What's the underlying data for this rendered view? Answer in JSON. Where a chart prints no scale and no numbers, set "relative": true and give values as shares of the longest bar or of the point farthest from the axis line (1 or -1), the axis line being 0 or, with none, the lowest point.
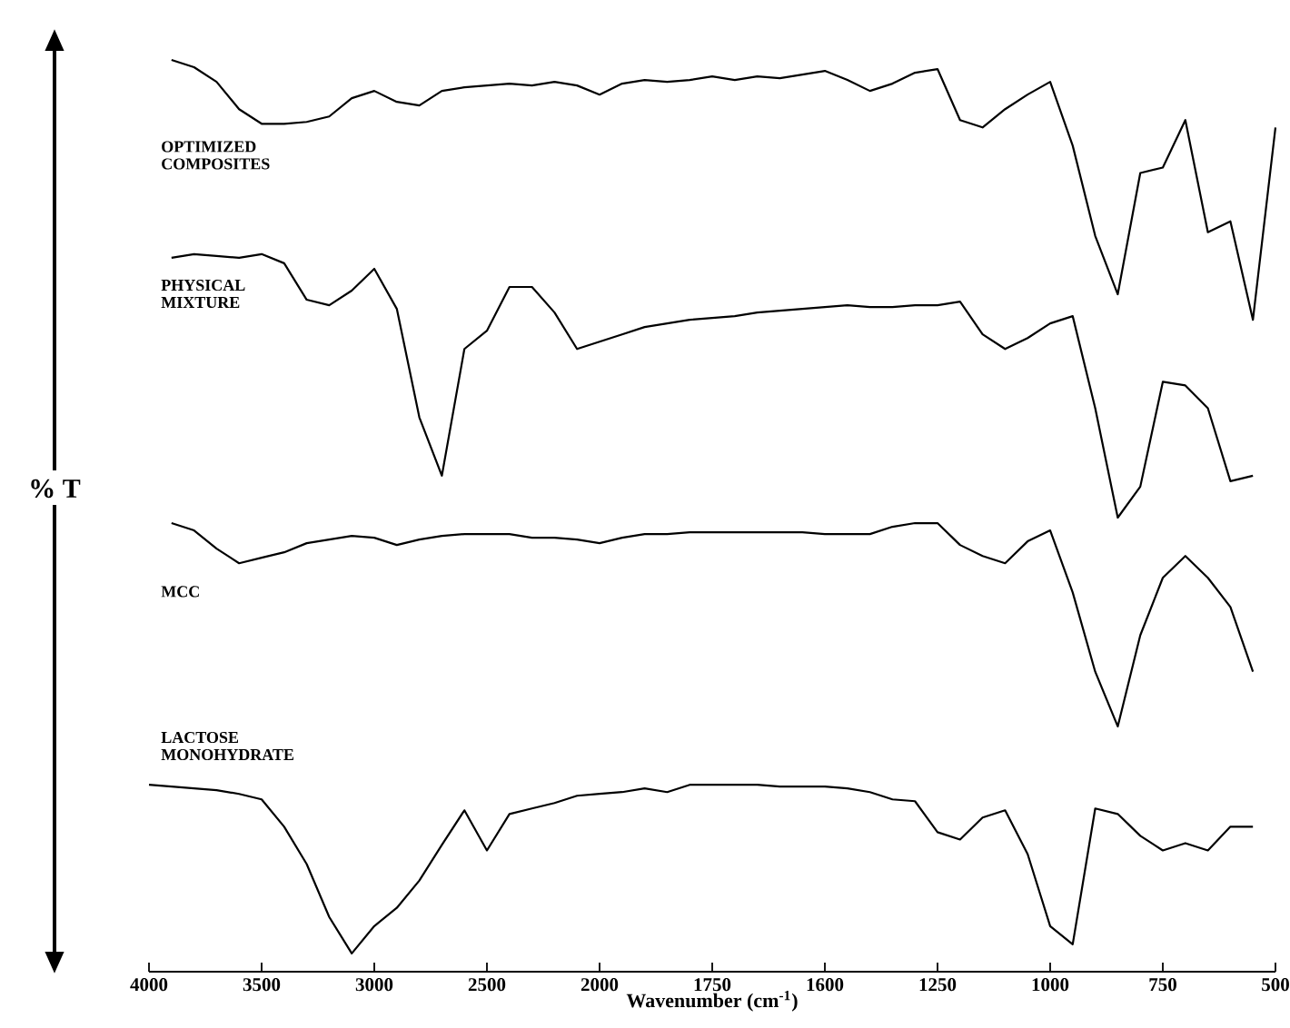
{
  "chart_data": {
    "type": "line",
    "relative": true,
    "xlabel": "Wavenumber (cm$^{-1}$)",
    "ylabel": "% T",
    "categories": [
      "4000",
      null,
      null,
      null,
      null,
      "3500",
      null,
      null,
      null,
      null,
      "3000",
      null,
      null,
      null,
      null,
      "2500",
      null,
      null,
      null,
      null,
      "2000",
      null,
      null,
      null,
      null,
      "1750",
      null,
      null,
      null,
      null,
      "1600",
      null,
      null,
      null,
      null,
      "1250",
      null,
      null,
      null,
      null,
      "1000",
      null,
      null,
      null,
      null,
      "750",
      null,
      null,
      null,
      null,
      "500"
    ],
    "series": [
      {
        "name": "OPTIMIZED COMPOSITES",
        "color": "#000000",
        "values": [
          null,
          1.0,
          0.992,
          0.976,
          0.946,
          0.93,
          0.93,
          0.932,
          0.938,
          0.958,
          0.966,
          0.954,
          0.95,
          0.966,
          0.97,
          0.972,
          0.974,
          0.972,
          0.976,
          0.972,
          0.962,
          0.974,
          0.978,
          0.976,
          0.978,
          0.982,
          0.978,
          0.982,
          0.98,
          0.984,
          0.988,
          0.978,
          0.966,
          0.974,
          0.986,
          0.99,
          0.934,
          0.926,
          0.946,
          0.962,
          0.976,
          0.906,
          0.807,
          0.743,
          0.876,
          0.882,
          0.934,
          0.811,
          0.823,
          0.715,
          0.926
        ]
      },
      {
        "name": "PHYSICAL MIXTURE",
        "color": "#000000",
        "values": [
          null,
          0.783,
          0.787,
          0.785,
          0.783,
          0.787,
          0.777,
          0.737,
          0.731,
          0.747,
          0.771,
          0.727,
          0.608,
          0.544,
          0.683,
          0.703,
          0.751,
          0.751,
          0.723,
          0.683,
          0.691,
          0.699,
          0.707,
          0.711,
          0.715,
          0.717,
          0.719,
          0.723,
          0.725,
          0.727,
          0.729,
          0.731,
          0.729,
          0.729,
          0.731,
          0.731,
          0.735,
          0.699,
          0.683,
          0.695,
          0.711,
          0.719,
          0.618,
          0.498,
          0.532,
          0.647,
          0.643,
          0.618,
          0.538,
          0.544,
          null
        ]
      },
      {
        "name": "MCC",
        "color": "#000000",
        "values": [
          null,
          0.492,
          0.484,
          0.464,
          0.448,
          0.454,
          0.46,
          0.47,
          0.474,
          0.478,
          0.476,
          0.468,
          0.474,
          0.478,
          0.48,
          0.48,
          0.48,
          0.476,
          0.476,
          0.474,
          0.47,
          0.476,
          0.48,
          0.48,
          0.482,
          0.482,
          0.482,
          0.482,
          0.482,
          0.482,
          0.48,
          0.48,
          0.48,
          0.488,
          0.492,
          0.492,
          0.468,
          0.456,
          0.448,
          0.472,
          0.484,
          0.416,
          0.329,
          0.269,
          0.369,
          0.432,
          0.456,
          0.432,
          0.4,
          0.329,
          null
        ]
      },
      {
        "name": "LACTOSE MONOHYDRATE",
        "color": "#000000",
        "values": [
          0.205,
          0.203,
          0.201,
          0.199,
          0.195,
          0.189,
          0.159,
          0.118,
          0.06,
          0.02,
          0.05,
          0.07,
          0.1,
          0.139,
          0.177,
          0.133,
          0.173,
          0.179,
          0.185,
          0.193,
          0.195,
          0.197,
          0.201,
          0.197,
          0.205,
          0.205,
          0.205,
          0.205,
          0.203,
          0.203,
          0.203,
          0.201,
          0.197,
          0.189,
          0.187,
          0.153,
          0.145,
          0.169,
          0.177,
          0.129,
          0.05,
          0.03,
          0.179,
          0.173,
          0.149,
          0.133,
          0.141,
          0.133,
          0.159,
          0.159,
          null
        ]
      }
    ]
  }
}
